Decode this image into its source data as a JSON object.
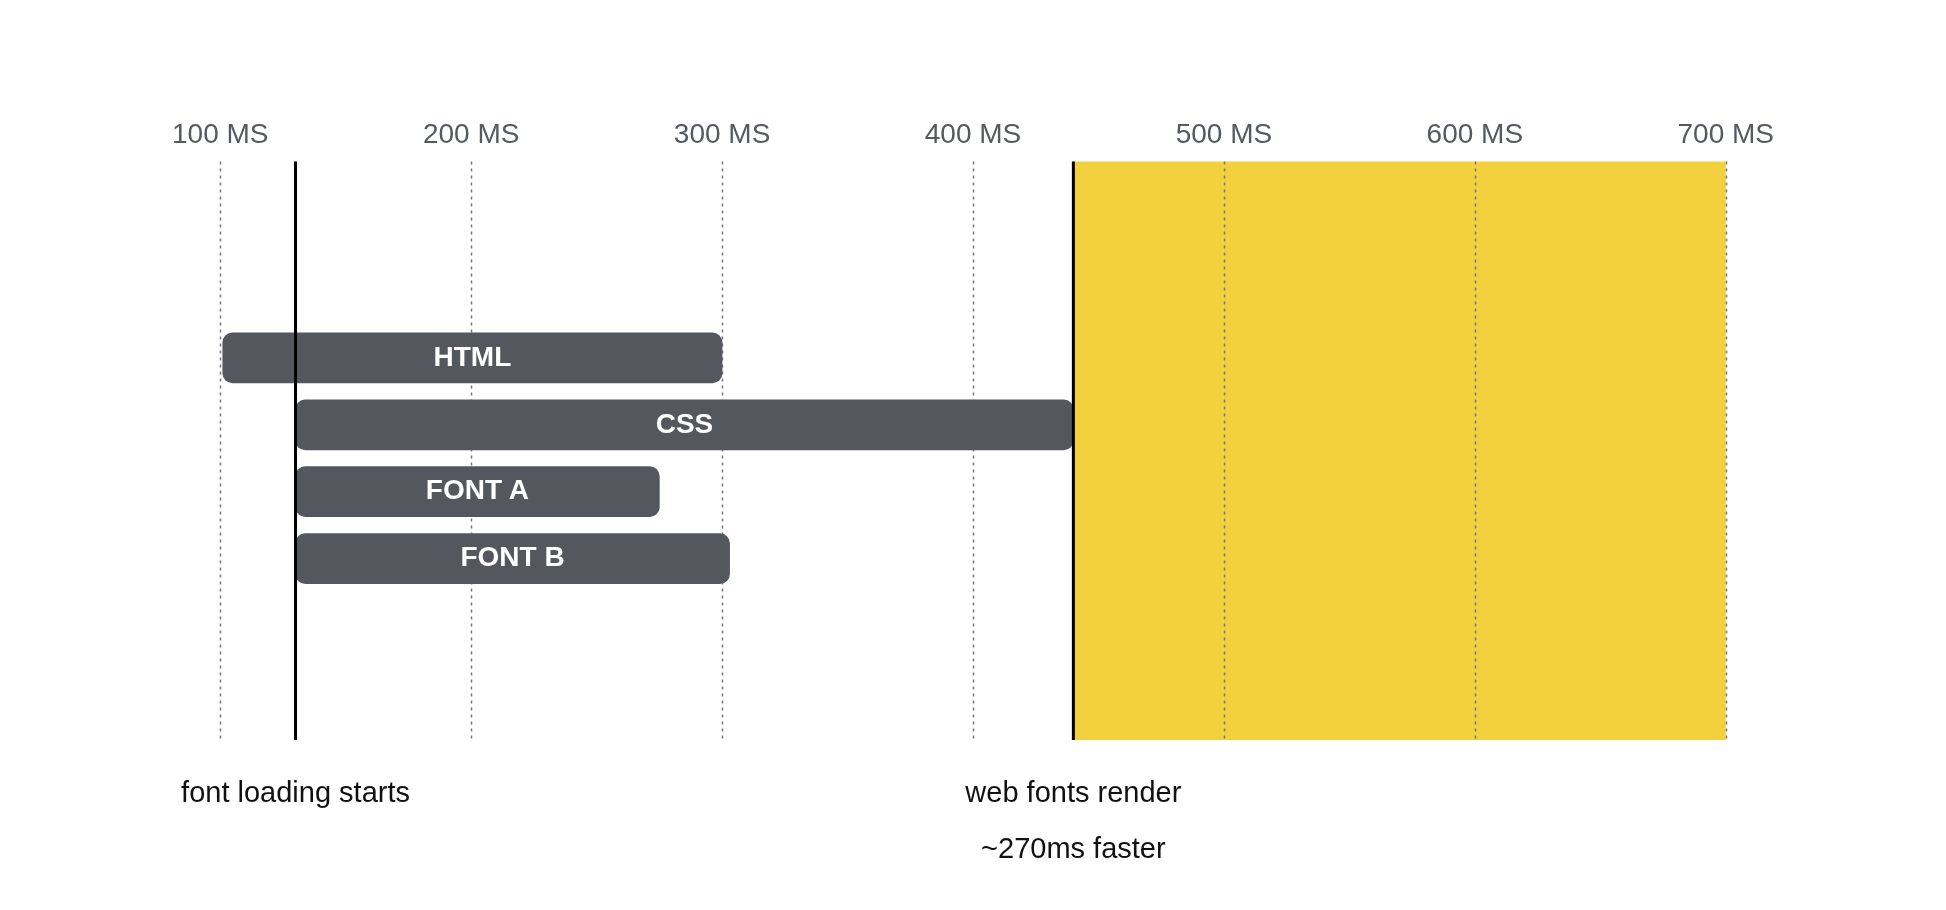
{
  "chart_data": {
    "type": "bar",
    "orientation": "horizontal",
    "categories": [
      "HTML",
      "CSS",
      "FONT A",
      "FONT B"
    ],
    "base": [
      101,
      130,
      130,
      130
    ],
    "values": [
      199,
      310,
      145,
      173
    ],
    "color": "#54585e",
    "xlim": [
      100,
      700
    ],
    "xticks": [
      {
        "value": 100,
        "label": "100 MS"
      },
      {
        "value": 200,
        "label": "200 MS"
      },
      {
        "value": 300,
        "label": "300 MS"
      },
      {
        "value": 400,
        "label": "400 MS"
      },
      {
        "value": 500,
        "label": "500 MS"
      },
      {
        "value": 600,
        "label": "600 MS"
      },
      {
        "value": 700,
        "label": "700 MS"
      }
    ],
    "grid": "x",
    "legend": false,
    "ref_lines": [
      {
        "axis": "x",
        "value": 130,
        "label": "font loading starts",
        "color": "#000000"
      },
      {
        "axis": "x",
        "value": 440,
        "label": "web fonts render\n~270ms faster",
        "color": "#000000"
      }
    ],
    "bands": [
      {
        "axis": "x",
        "from": 440,
        "to": 700,
        "color": "#f3d03e"
      }
    ]
  }
}
